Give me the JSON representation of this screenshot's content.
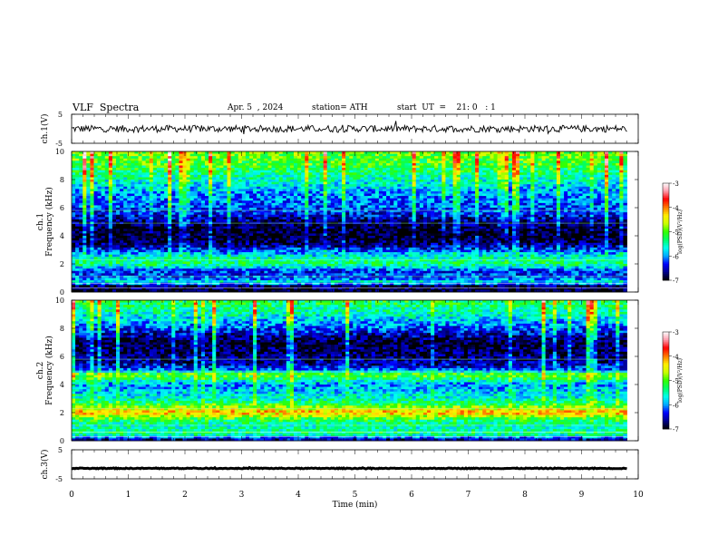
{
  "header": {
    "title": "VLF  Spectra",
    "date": "Apr. 5  , 2024",
    "station": "station= ATH",
    "start": "start  UT  =    21: 0   : 1"
  },
  "chart_data": [
    {
      "type": "line",
      "panel": "ch1-waveform",
      "ylabel": "ch.1(V)",
      "ylim": [
        -5,
        5
      ],
      "yticks": [
        "5",
        "-5"
      ],
      "xlim": [
        0,
        10
      ],
      "x_end_data": 9.8,
      "mean": 0,
      "noise_amplitude": 1.2,
      "grid": false
    },
    {
      "type": "heatmap",
      "panel": "ch1-spectrogram",
      "ylabel": "ch.1\nFrequency (kHz)",
      "ylabel_lines": [
        "ch.1",
        "Frequency (kHz)"
      ],
      "ylim": [
        0,
        10
      ],
      "yticks": [
        "0",
        "2",
        "4",
        "6",
        "8",
        "10"
      ],
      "xlim": [
        0,
        10
      ],
      "x_end_data": 9.8,
      "description_profile_khz_to_logpsd": [
        [
          0.0,
          -7.0
        ],
        [
          0.4,
          -6.8
        ],
        [
          0.7,
          -5.6
        ],
        [
          1.0,
          -6.2
        ],
        [
          1.5,
          -6.3
        ],
        [
          2.0,
          -5.3
        ],
        [
          2.5,
          -5.6
        ],
        [
          3.0,
          -6.3
        ],
        [
          3.5,
          -6.8
        ],
        [
          4.0,
          -7.0
        ],
        [
          4.5,
          -6.9
        ],
        [
          5.0,
          -6.7
        ],
        [
          5.5,
          -6.4
        ],
        [
          6.0,
          -6.2
        ],
        [
          7.0,
          -6.0
        ],
        [
          8.0,
          -5.6
        ],
        [
          9.0,
          -5.1
        ],
        [
          10.0,
          -4.9
        ]
      ],
      "colorbar": {
        "label": "log(PSD) (V²/Hz)",
        "range": [
          -7,
          -3
        ],
        "ticks": [
          "-3",
          "-4",
          "-5",
          "-6",
          "-7"
        ]
      }
    },
    {
      "type": "heatmap",
      "panel": "ch2-spectrogram",
      "ylabel": "ch.2\nFrequency (kHz)",
      "ylabel_lines": [
        "ch.2",
        "Frequency (kHz)"
      ],
      "ylim": [
        0,
        10
      ],
      "yticks": [
        "0",
        "2",
        "4",
        "6",
        "8",
        "10"
      ],
      "xlim": [
        0,
        10
      ],
      "x_end_data": 9.8,
      "description_profile_khz_to_logpsd": [
        [
          0.0,
          -6.8
        ],
        [
          0.5,
          -5.3
        ],
        [
          1.0,
          -5.6
        ],
        [
          1.5,
          -5.2
        ],
        [
          2.0,
          -4.2
        ],
        [
          2.3,
          -4.6
        ],
        [
          2.6,
          -5.2
        ],
        [
          3.0,
          -5.6
        ],
        [
          3.5,
          -5.8
        ],
        [
          4.0,
          -6.0
        ],
        [
          4.7,
          -4.9
        ],
        [
          5.0,
          -6.1
        ],
        [
          5.5,
          -6.6
        ],
        [
          6.0,
          -6.7
        ],
        [
          7.0,
          -6.9
        ],
        [
          8.0,
          -6.2
        ],
        [
          9.0,
          -5.6
        ],
        [
          10.0,
          -5.2
        ]
      ],
      "colorbar": {
        "label": "log(PSD) (V²/Hz)",
        "range": [
          -7,
          -3
        ],
        "ticks": [
          "-3",
          "-4",
          "-5",
          "-6",
          "-7"
        ]
      }
    },
    {
      "type": "line",
      "panel": "ch3-waveform",
      "ylabel": "ch.3(V)",
      "ylim": [
        -5,
        5
      ],
      "yticks": [
        "5",
        "-5"
      ],
      "xlim": [
        0,
        10
      ],
      "x_end_data": 9.8,
      "mean": -1.4,
      "noise_amplitude": 0.15,
      "grid": false
    }
  ],
  "xaxis": {
    "label": "Time  (min)",
    "ticks": [
      "0",
      "1",
      "2",
      "3",
      "4",
      "5",
      "6",
      "7",
      "8",
      "9",
      "10"
    ]
  },
  "colorbar_ticks": [
    "-3",
    "-4",
    "-5",
    "-6",
    "-7"
  ],
  "colorbar_label": "log(PSD)(V²/Hz)",
  "colors": {
    "low": "#000000",
    "scale": [
      "#000000",
      "#00008b",
      "#0000ff",
      "#00aaff",
      "#00ffee",
      "#00ff66",
      "#33ff00",
      "#ccff00",
      "#ffee00",
      "#ff7700",
      "#ff0000",
      "#ff99aa",
      "#ffffff"
    ]
  }
}
